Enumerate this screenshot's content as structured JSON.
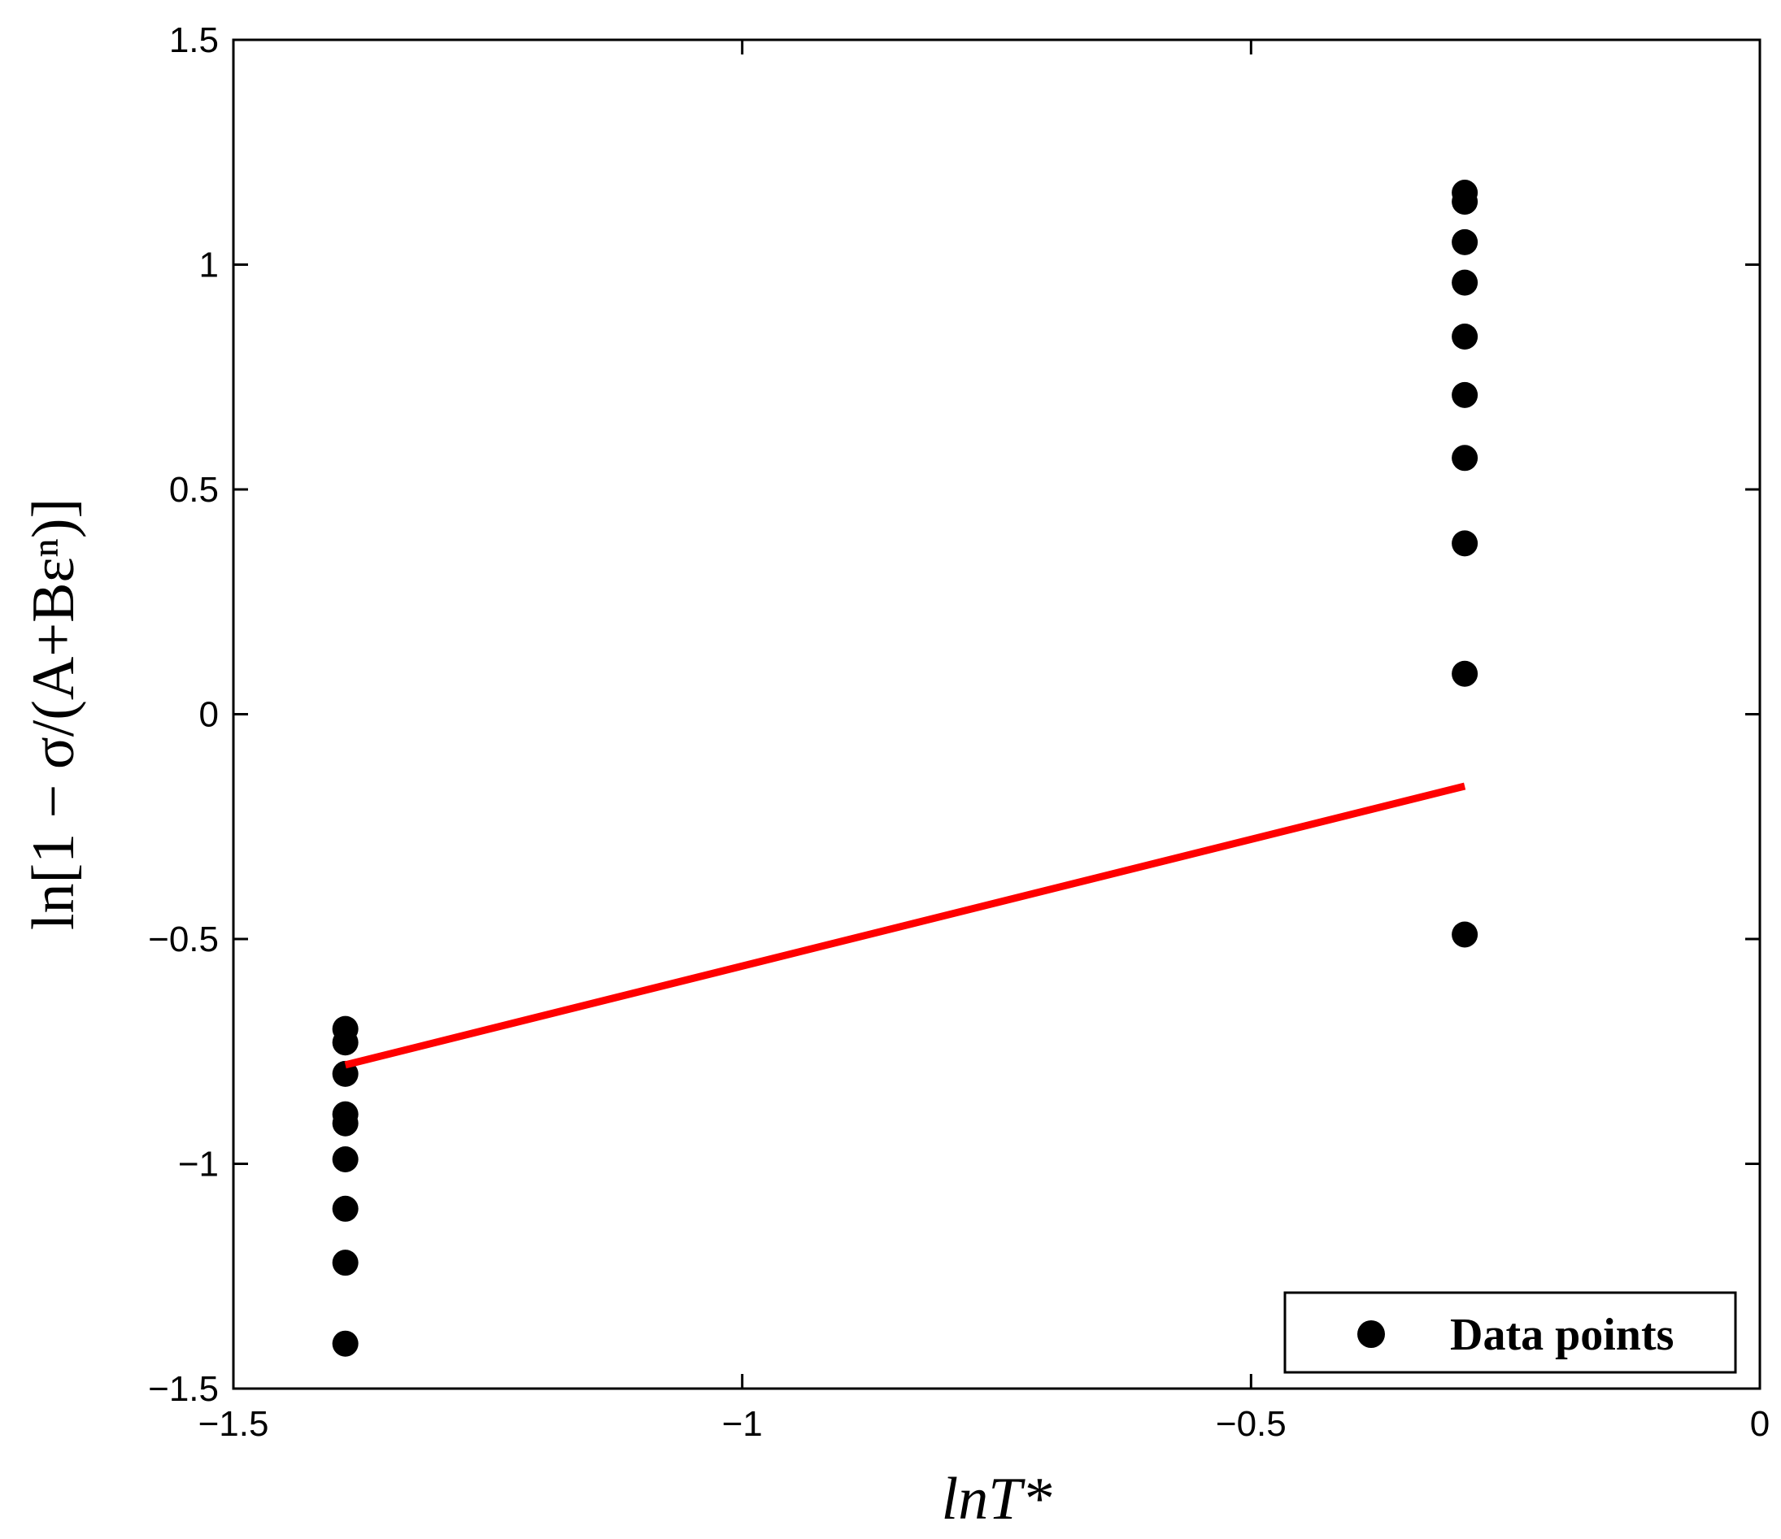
{
  "chart_data": {
    "type": "scatter",
    "title": "",
    "xlabel": "lnT*",
    "ylabel": "ln[1 − σ/(A+Bεⁿ)]",
    "xlim": [
      -1.5,
      0
    ],
    "ylim": [
      -1.5,
      1.5
    ],
    "x_ticks": [
      -1.5,
      -1,
      -0.5,
      0
    ],
    "x_tick_labels": [
      "−1.5",
      "−1",
      "−0.5",
      "0"
    ],
    "y_ticks": [
      -1.5,
      -1,
      -0.5,
      0,
      0.5,
      1,
      1.5
    ],
    "y_tick_labels": [
      "−1.5",
      "−1",
      "−0.5",
      "0",
      "0.5",
      "1",
      "1.5"
    ],
    "grid": false,
    "legend_position": "bottom-right",
    "series": [
      {
        "name": "Data points",
        "type": "scatter",
        "color": "#000000",
        "points": [
          [
            -1.39,
            -0.7
          ],
          [
            -1.39,
            -0.73
          ],
          [
            -1.39,
            -0.8
          ],
          [
            -1.39,
            -0.89
          ],
          [
            -1.39,
            -0.91
          ],
          [
            -1.39,
            -0.99
          ],
          [
            -1.39,
            -1.1
          ],
          [
            -1.39,
            -1.22
          ],
          [
            -1.39,
            -1.4
          ],
          [
            -0.29,
            1.16
          ],
          [
            -0.29,
            1.14
          ],
          [
            -0.29,
            1.05
          ],
          [
            -0.29,
            0.96
          ],
          [
            -0.29,
            0.84
          ],
          [
            -0.29,
            0.71
          ],
          [
            -0.29,
            0.57
          ],
          [
            -0.29,
            0.38
          ],
          [
            -0.29,
            0.09
          ],
          [
            -0.29,
            -0.49
          ]
        ]
      },
      {
        "type": "line",
        "color": "#ff0000",
        "points": [
          [
            -1.39,
            -0.78
          ],
          [
            -0.29,
            -0.16
          ]
        ]
      }
    ]
  }
}
